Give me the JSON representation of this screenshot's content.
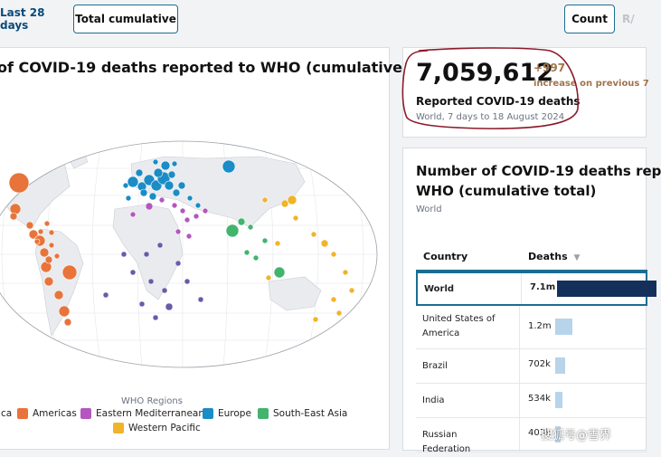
{
  "tabs": {
    "last_28": "Last 28 days",
    "total": "Total cumulative",
    "count": "Count",
    "rate": "R/"
  },
  "map": {
    "title": "of COVID-19 deaths reported to WHO (cumulative",
    "legend_title": "WHO Regions",
    "legend": [
      {
        "label": "ca",
        "color": "#f0f0f0"
      },
      {
        "label": "Americas",
        "color": "#e8743b"
      },
      {
        "label": "Eastern Mediterranean",
        "color": "#b556c0"
      },
      {
        "label": "Europe",
        "color": "#1a8cc6"
      },
      {
        "label": "South-East Asia",
        "color": "#42b46d"
      },
      {
        "label": "Western Pacific",
        "color": "#f0b429"
      }
    ]
  },
  "kpi": {
    "value": "7,059,612",
    "delta": "+997",
    "delta_text": "increase on previous 7",
    "label": "Reported COVID-19 deaths",
    "sub": "World, 7 days to 18 August 2024"
  },
  "table": {
    "title_line1": "Number of COVID-19 deaths rep",
    "title_line2": "WHO (cumulative total)",
    "subtitle": "World",
    "col_country": "Country",
    "col_deaths": "Deaths",
    "rows": [
      {
        "country": "World",
        "deaths": "7.1m",
        "share": 1.0
      },
      {
        "country": "United States of America",
        "deaths": "1.2m",
        "share": 0.17
      },
      {
        "country": "Brazil",
        "deaths": "702k",
        "share": 0.1
      },
      {
        "country": "India",
        "deaths": "534k",
        "share": 0.076
      },
      {
        "country": "Russian Federation",
        "deaths": "403k",
        "share": 0.057
      }
    ]
  },
  "watermark": "搜狐号@雪界"
}
